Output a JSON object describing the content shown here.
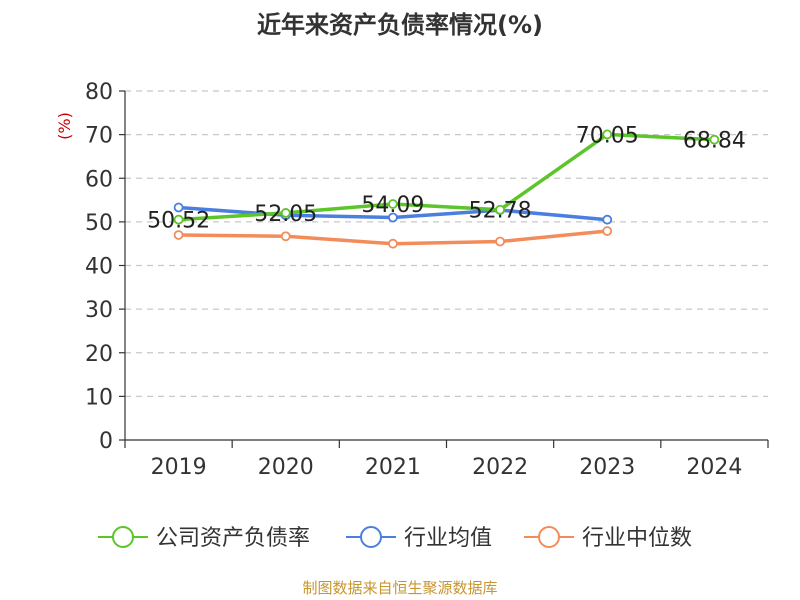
{
  "chart_data": {
    "type": "line",
    "title": "近年来资产负债率情况(%)",
    "ylabel": "(%)",
    "ylim": [
      0,
      80
    ],
    "yticks": [
      0,
      10,
      20,
      30,
      40,
      50,
      60,
      70,
      80
    ],
    "categories": [
      "2019",
      "2020",
      "2021",
      "2022",
      "2023",
      "2024"
    ],
    "grid": true,
    "legend_position": "bottom",
    "series": [
      {
        "name": "公司资产负债率",
        "color": "#5cc52a",
        "values": [
          50.52,
          52.05,
          54.09,
          52.78,
          70.05,
          68.84
        ],
        "labels": [
          "50.52",
          "52.05",
          "54.09",
          "52.78",
          "70.05",
          "68.84"
        ]
      },
      {
        "name": "行业均值",
        "color": "#4a7fe0",
        "values": [
          53.3,
          51.5,
          51.0,
          52.7,
          50.5,
          null
        ]
      },
      {
        "name": "行业中位数",
        "color": "#f48c5a",
        "values": [
          47.0,
          46.7,
          45.0,
          45.5,
          47.9,
          null
        ]
      }
    ]
  },
  "source_note": "制图数据来自恒生聚源数据库"
}
